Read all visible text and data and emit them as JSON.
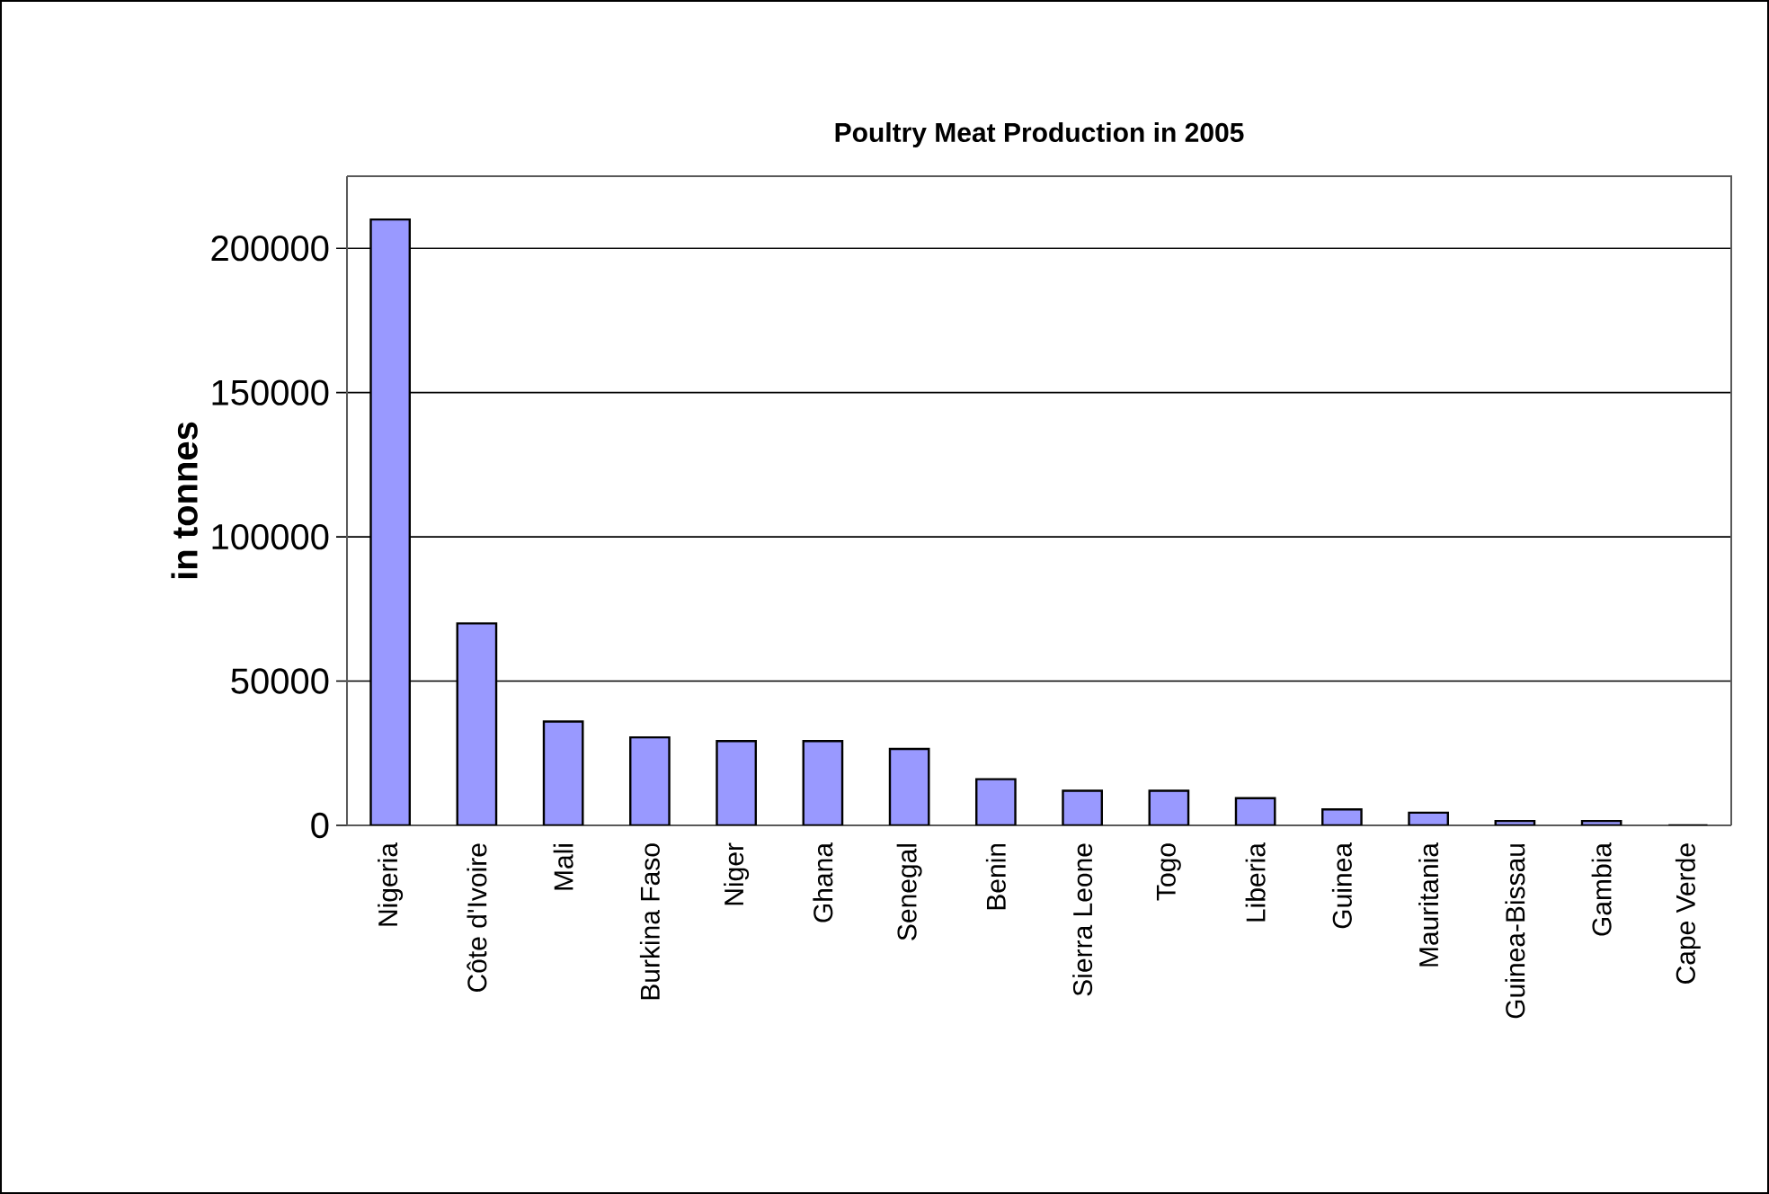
{
  "chart_data": {
    "type": "bar",
    "title": "Poultry Meat Production in 2005",
    "ylabel": "in tonnes",
    "categories": [
      "Nigeria",
      "Côte d'Ivoire",
      "Mali",
      "Burkina Faso",
      "Niger",
      "Ghana",
      "Senegal",
      "Benin",
      "Sierra Leone",
      "Togo",
      "Liberia",
      "Guinea",
      "Mauritania",
      "Guinea-Bissau",
      "Gambia",
      "Cape Verde"
    ],
    "values": [
      210000,
      70000,
      36000,
      30500,
      29200,
      29200,
      26500,
      16000,
      12000,
      12000,
      9400,
      5500,
      4400,
      1500,
      1500,
      0
    ],
    "color": "#9999ff",
    "ylim": [
      0,
      225000
    ],
    "yticks": [
      0,
      50000,
      100000,
      150000,
      200000
    ],
    "grid": "y"
  }
}
